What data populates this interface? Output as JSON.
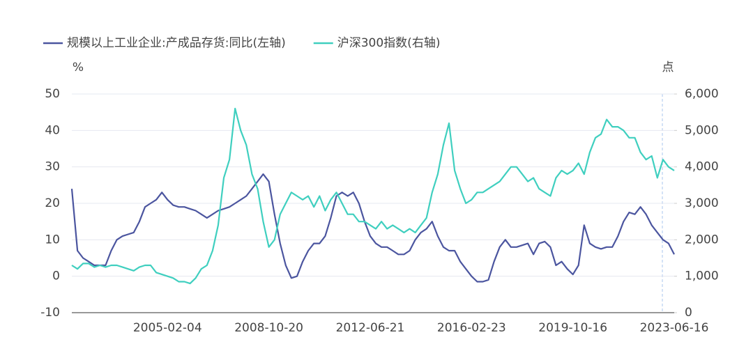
{
  "chart_data": {
    "type": "line",
    "y_unit": "%",
    "y2_unit": "点",
    "categories": [
      null,
      null,
      null,
      null,
      null,
      null,
      null,
      null,
      null,
      null,
      null,
      null,
      null,
      null,
      null,
      null,
      null,
      "2005-02-04",
      null,
      null,
      null,
      null,
      null,
      null,
      null,
      null,
      null,
      null,
      null,
      null,
      null,
      null,
      null,
      null,
      null,
      "2008-10-20",
      null,
      null,
      null,
      null,
      null,
      null,
      null,
      null,
      null,
      null,
      null,
      null,
      null,
      null,
      null,
      null,
      null,
      "2012-06-21",
      null,
      null,
      null,
      null,
      null,
      null,
      null,
      null,
      null,
      null,
      null,
      null,
      null,
      null,
      null,
      null,
      null,
      "2016-02-23",
      null,
      null,
      null,
      null,
      null,
      null,
      null,
      null,
      null,
      null,
      null,
      null,
      null,
      null,
      null,
      null,
      null,
      "2019-10-16",
      null,
      null,
      null,
      null,
      null,
      null,
      null,
      null,
      null,
      null,
      null,
      null,
      null,
      null,
      null,
      null,
      null,
      "2023-06-16"
    ],
    "series": [
      {
        "name": "规模以上工业企业:产成品存货:同比(左轴)",
        "color": "#4b559f",
        "axis": "y",
        "values": [
          24,
          7,
          5,
          4,
          3,
          3,
          3,
          7,
          10,
          11,
          11.5,
          12,
          15,
          19,
          20,
          21,
          23,
          21,
          19.5,
          19,
          19,
          18.5,
          18,
          17,
          16,
          17,
          18,
          18.5,
          19,
          20,
          21,
          22,
          24,
          26,
          28,
          26,
          17,
          9,
          3,
          -0.5,
          0,
          4,
          7,
          9,
          9,
          11,
          16,
          22,
          23,
          22,
          23,
          20,
          15,
          11,
          9,
          8,
          8,
          7,
          6,
          6,
          7,
          10,
          12,
          13,
          15,
          11,
          8,
          7,
          7,
          4,
          2,
          0,
          -1.5,
          -1.5,
          -1,
          4,
          8,
          10,
          8,
          8,
          8.5,
          9,
          6,
          9,
          9.5,
          8,
          3,
          4,
          2,
          0.5,
          3,
          14,
          9,
          8,
          7.5,
          8,
          8,
          11,
          15,
          17.5,
          17,
          19,
          17,
          14,
          12,
          10,
          9,
          6
        ]
      },
      {
        "name": "沪深300指数(右轴)",
        "color": "#3fcfbf",
        "axis": "y2",
        "values": [
          1300,
          1200,
          1350,
          1350,
          1250,
          1300,
          1250,
          1300,
          1300,
          1250,
          1200,
          1150,
          1250,
          1300,
          1300,
          1100,
          1050,
          1000,
          950,
          850,
          850,
          800,
          950,
          1200,
          1300,
          1700,
          2400,
          3700,
          4200,
          5600,
          5000,
          4600,
          3800,
          3400,
          2500,
          1800,
          2000,
          2700,
          3000,
          3300,
          3200,
          3100,
          3200,
          2900,
          3200,
          2800,
          3100,
          3300,
          3000,
          2700,
          2700,
          2500,
          2500,
          2400,
          2300,
          2500,
          2300,
          2400,
          2300,
          2200,
          2300,
          2200,
          2400,
          2600,
          3300,
          3800,
          4600,
          5200,
          3900,
          3400,
          3000,
          3100,
          3300,
          3300,
          3400,
          3500,
          3600,
          3800,
          4000,
          4000,
          3800,
          3600,
          3700,
          3400,
          3300,
          3200,
          3700,
          3900,
          3800,
          3900,
          4100,
          3800,
          4400,
          4800,
          4900,
          5300,
          5100,
          5100,
          5000,
          4800,
          4800,
          4400,
          4200,
          4300,
          3700,
          4200,
          4000,
          3900
        ]
      }
    ],
    "ylim": [
      -10,
      50
    ],
    "yticks": [
      -10,
      0,
      10,
      20,
      30,
      40,
      50
    ],
    "y2lim": [
      0,
      6000
    ],
    "y2ticks": [
      0,
      {
        "value": 1000,
        "label": "1,000"
      },
      {
        "value": 2000,
        "label": "2,000"
      },
      {
        "value": 3000,
        "label": "3,000"
      },
      {
        "value": 4000,
        "label": "4,000"
      },
      {
        "value": 5000,
        "label": "5,000"
      },
      {
        "value": 6000,
        "label": "6,000"
      }
    ],
    "grid": true,
    "legend": "top"
  }
}
